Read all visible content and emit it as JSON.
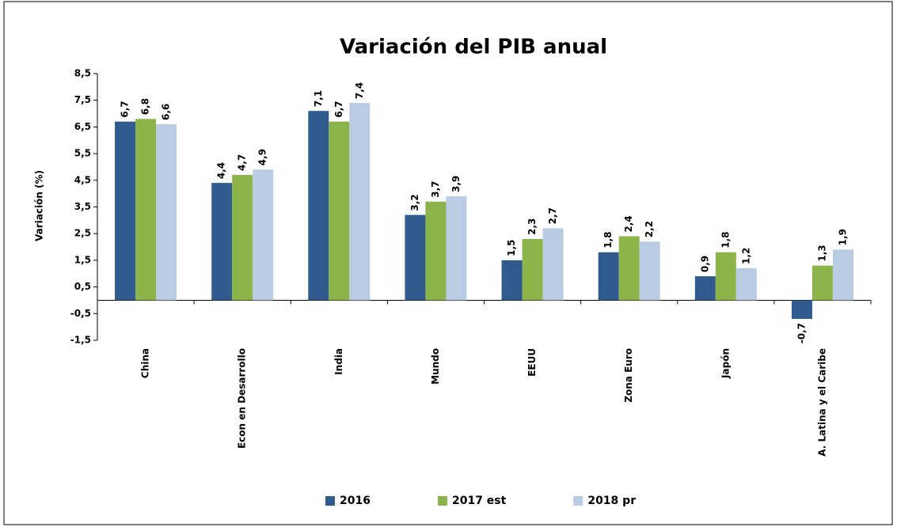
{
  "chart_data": {
    "type": "bar",
    "title": "Variación del PIB anual",
    "y_label": "Variación (%)",
    "categories": [
      "China",
      "Econ en Desarrollo",
      "India",
      "Mundo",
      "EEUU",
      "Zona Euro",
      "Japón",
      "A. Latina y el Caribe"
    ],
    "series": [
      {
        "name": "2016",
        "color": "#2f5b8f",
        "values": [
          6.7,
          4.4,
          7.1,
          3.2,
          1.5,
          1.8,
          0.9,
          -0.7
        ],
        "value_labels": [
          "6,7",
          "4,4",
          "7,1",
          "3,2",
          "1,5",
          "1,8",
          "0,9",
          "-0,7"
        ]
      },
      {
        "name": "2017 est",
        "color": "#8db34b",
        "values": [
          6.8,
          4.7,
          6.7,
          3.7,
          2.3,
          2.4,
          1.8,
          1.3
        ],
        "value_labels": [
          "6,8",
          "4,7",
          "6,7",
          "3,7",
          "2,3",
          "2,4",
          "1,8",
          "1,3"
        ]
      },
      {
        "name": "2018 pr",
        "color": "#b9cce4",
        "values": [
          6.6,
          4.9,
          7.4,
          3.9,
          2.7,
          2.2,
          1.2,
          1.9
        ],
        "value_labels": [
          "6,6",
          "4,9",
          "7,4",
          "3,9",
          "2,7",
          "2,2",
          "1,2",
          "1,9"
        ]
      }
    ],
    "ylim": [
      -1.5,
      8.5
    ],
    "yticks": [
      {
        "value": -1.5,
        "label": "-1,5"
      },
      {
        "value": -0.5,
        "label": "-0,5"
      },
      {
        "value": 0.5,
        "label": "0,5"
      },
      {
        "value": 1.5,
        "label": "1,5"
      },
      {
        "value": 2.5,
        "label": "2,5"
      },
      {
        "value": 3.5,
        "label": "3,5"
      },
      {
        "value": 4.5,
        "label": "4,5"
      },
      {
        "value": 5.5,
        "label": "5,5"
      },
      {
        "value": 6.5,
        "label": "6,5"
      },
      {
        "value": 7.5,
        "label": "7,5"
      },
      {
        "value": 8.5,
        "label": "8,5"
      }
    ],
    "grid": false,
    "legend": "bottom"
  }
}
